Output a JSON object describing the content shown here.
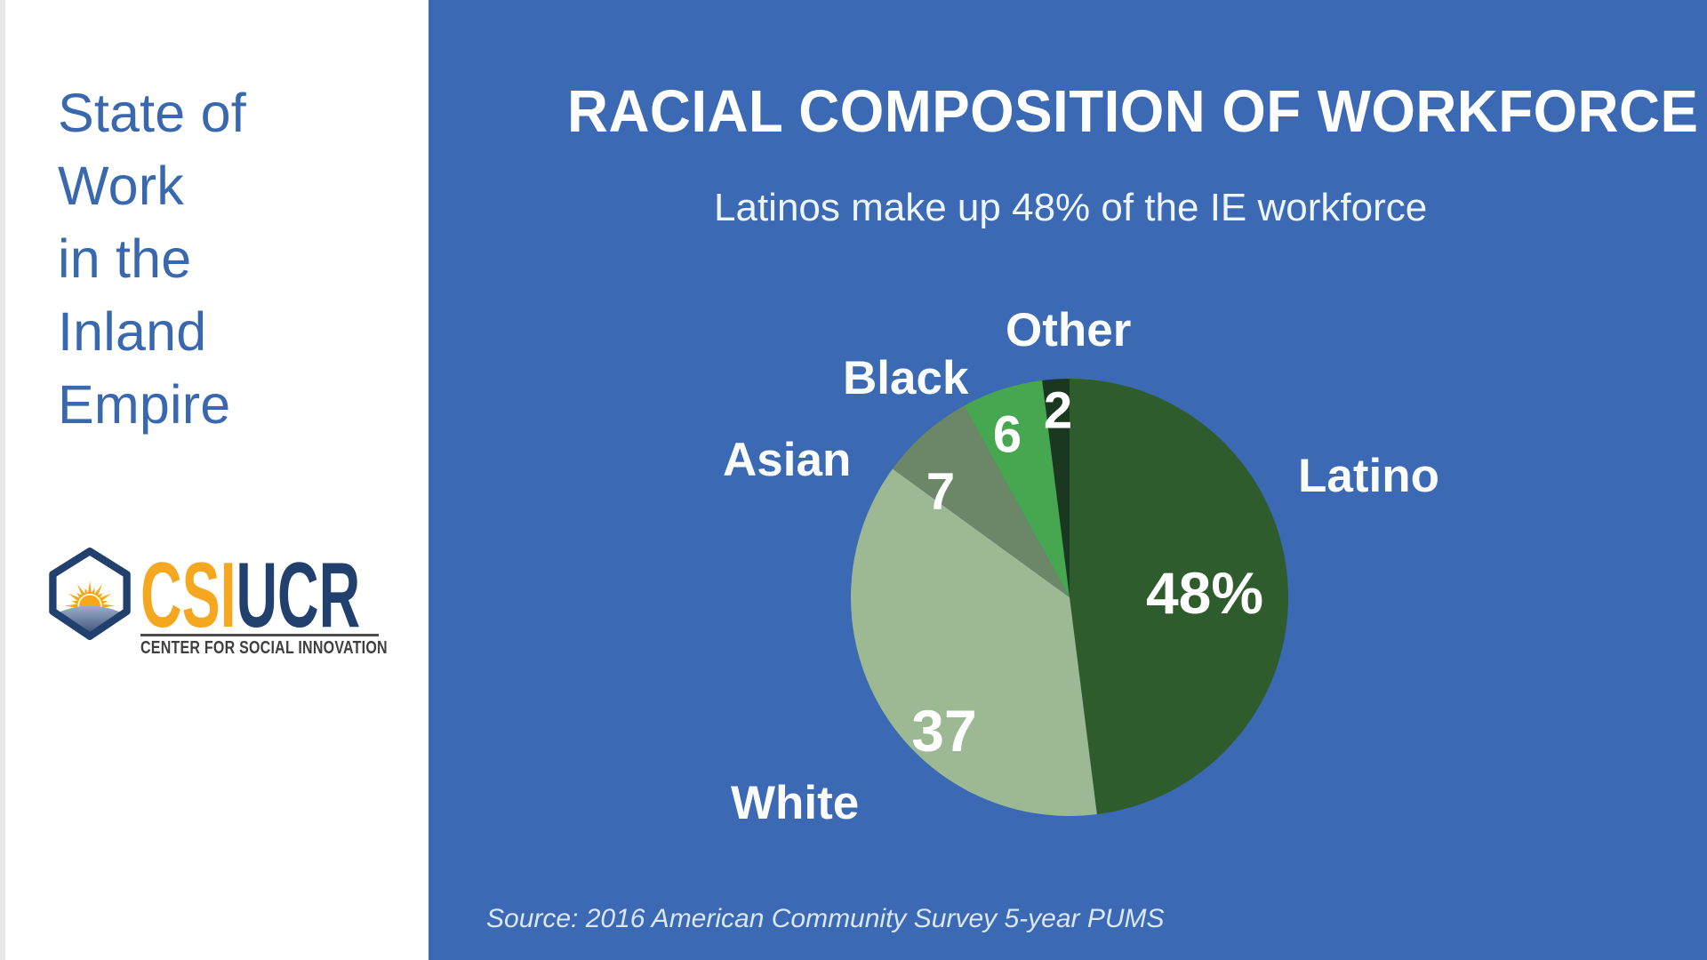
{
  "left_panel": {
    "title_lines": [
      "State of",
      "Work",
      "in the",
      "Inland",
      "Empire"
    ],
    "title_color": "#3A68AE",
    "logo": {
      "text_primary": "CSI",
      "text_secondary": "UCR",
      "tagline": "CENTER FOR SOCIAL INNOVATION",
      "colors": {
        "primary_gold": "#F5A81F",
        "secondary_navy": "#21406E",
        "shield_navy": "#21406E",
        "sun_gold": "#F6A81C",
        "tagline_gray": "#3F3F3F"
      }
    }
  },
  "chart_panel": {
    "background": "#3B69B4",
    "title": "RACIAL COMPOSITION OF WORKFORCE",
    "subtitle": "Latinos make up 48% of the IE workforce",
    "source": "Source: 2016 American Community Survey 5-year PUMS"
  },
  "chart_data": {
    "type": "pie",
    "title": "RACIAL COMPOSITION OF WORKFORCE",
    "subtitle": "Latinos make up 48% of the IE workforce",
    "source": "Source: 2016 American Community Survey 5-year PUMS",
    "unit": "percent",
    "total": 100,
    "start_angle_deg": 0,
    "direction": "clockwise",
    "legend_position": "outside-labels",
    "slices": [
      {
        "label": "Latino",
        "value": 48,
        "value_label": "48%",
        "color": "#2F5C2D"
      },
      {
        "label": "White",
        "value": 37,
        "value_label": "37",
        "color": "#9CB993"
      },
      {
        "label": "Asian",
        "value": 7,
        "value_label": "7",
        "color": "#6B8767"
      },
      {
        "label": "Black",
        "value": 6,
        "value_label": "6",
        "color": "#47A751"
      },
      {
        "label": "Other",
        "value": 2,
        "value_label": "2",
        "color": "#19381F"
      }
    ]
  }
}
